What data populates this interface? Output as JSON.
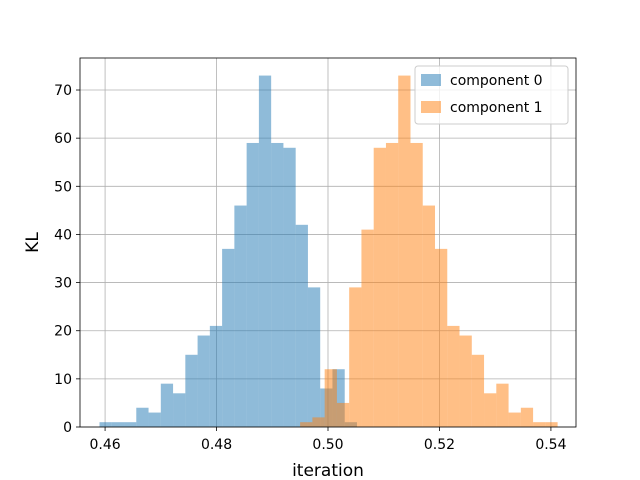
{
  "chart_data": {
    "type": "histogram",
    "title": "",
    "xlabel": "iteration",
    "ylabel": "KL",
    "xlim": [
      0.4555,
      0.5445
    ],
    "ylim": [
      0,
      76.65
    ],
    "xticks": [
      0.46,
      0.48,
      0.5,
      0.52,
      0.54
    ],
    "xtick_labels": [
      "0.46",
      "0.48",
      "0.50",
      "0.52",
      "0.54"
    ],
    "yticks": [
      0,
      10,
      20,
      30,
      40,
      50,
      60,
      70
    ],
    "ytick_labels": [
      "0",
      "10",
      "20",
      "30",
      "40",
      "50",
      "60",
      "70"
    ],
    "grid": true,
    "legend_position": "top-right",
    "series": [
      {
        "name": "component 0",
        "color": "#1f77b4",
        "alpha": 0.5,
        "bins": [
          {
            "x0": 0.459,
            "x1": 0.4612,
            "count": 1
          },
          {
            "x0": 0.4612,
            "x1": 0.4634,
            "count": 1
          },
          {
            "x0": 0.4634,
            "x1": 0.4656,
            "count": 1
          },
          {
            "x0": 0.4656,
            "x1": 0.4678,
            "count": 4
          },
          {
            "x0": 0.4678,
            "x1": 0.47,
            "count": 3
          },
          {
            "x0": 0.47,
            "x1": 0.4722,
            "count": 9
          },
          {
            "x0": 0.4722,
            "x1": 0.4744,
            "count": 7
          },
          {
            "x0": 0.4744,
            "x1": 0.4766,
            "count": 15
          },
          {
            "x0": 0.4766,
            "x1": 0.4788,
            "count": 19
          },
          {
            "x0": 0.4788,
            "x1": 0.481,
            "count": 21
          },
          {
            "x0": 0.481,
            "x1": 0.4832,
            "count": 37
          },
          {
            "x0": 0.4832,
            "x1": 0.4854,
            "count": 46
          },
          {
            "x0": 0.4854,
            "x1": 0.4876,
            "count": 59
          },
          {
            "x0": 0.4876,
            "x1": 0.4898,
            "count": 73
          },
          {
            "x0": 0.4898,
            "x1": 0.492,
            "count": 59
          },
          {
            "x0": 0.492,
            "x1": 0.4942,
            "count": 58
          },
          {
            "x0": 0.4942,
            "x1": 0.4964,
            "count": 42
          },
          {
            "x0": 0.4964,
            "x1": 0.4986,
            "count": 29
          },
          {
            "x0": 0.4986,
            "x1": 0.5008,
            "count": 8
          },
          {
            "x0": 0.5008,
            "x1": 0.503,
            "count": 12
          },
          {
            "x0": 0.503,
            "x1": 0.5052,
            "count": 1
          }
        ]
      },
      {
        "name": "component 1",
        "color": "#ff7f0e",
        "alpha": 0.5,
        "bins": [
          {
            "x0": 0.495,
            "x1": 0.4972,
            "count": 1
          },
          {
            "x0": 0.4972,
            "x1": 0.4994,
            "count": 2
          },
          {
            "x0": 0.4994,
            "x1": 0.5016,
            "count": 12
          },
          {
            "x0": 0.5016,
            "x1": 0.5038,
            "count": 5
          },
          {
            "x0": 0.5038,
            "x1": 0.506,
            "count": 29
          },
          {
            "x0": 0.506,
            "x1": 0.5082,
            "count": 41
          },
          {
            "x0": 0.5082,
            "x1": 0.5104,
            "count": 58
          },
          {
            "x0": 0.5104,
            "x1": 0.5126,
            "count": 59
          },
          {
            "x0": 0.5126,
            "x1": 0.5148,
            "count": 73
          },
          {
            "x0": 0.5148,
            "x1": 0.517,
            "count": 59
          },
          {
            "x0": 0.517,
            "x1": 0.5192,
            "count": 46
          },
          {
            "x0": 0.5192,
            "x1": 0.5214,
            "count": 37
          },
          {
            "x0": 0.5214,
            "x1": 0.5236,
            "count": 21
          },
          {
            "x0": 0.5236,
            "x1": 0.5258,
            "count": 19
          },
          {
            "x0": 0.5258,
            "x1": 0.528,
            "count": 15
          },
          {
            "x0": 0.528,
            "x1": 0.5302,
            "count": 7
          },
          {
            "x0": 0.5302,
            "x1": 0.5324,
            "count": 9
          },
          {
            "x0": 0.5324,
            "x1": 0.5346,
            "count": 3
          },
          {
            "x0": 0.5346,
            "x1": 0.5368,
            "count": 4
          },
          {
            "x0": 0.5368,
            "x1": 0.539,
            "count": 1
          },
          {
            "x0": 0.539,
            "x1": 0.5412,
            "count": 1
          }
        ]
      }
    ]
  }
}
